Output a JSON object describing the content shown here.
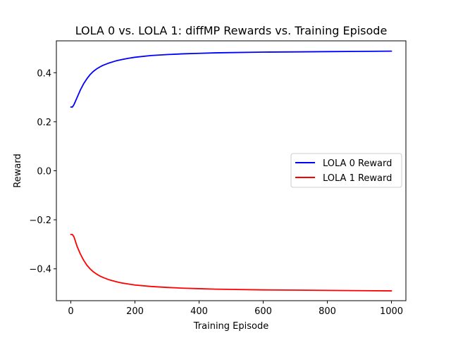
{
  "chart_data": {
    "type": "line",
    "title": "LOLA 0 vs. LOLA 1: diffMP Rewards vs. Training Episode",
    "xlabel": "Training Episode",
    "ylabel": "Reward",
    "xlim": [
      -45,
      1045
    ],
    "ylim": [
      -0.53,
      0.53
    ],
    "xticks": [
      0,
      200,
      400,
      600,
      800,
      1000
    ],
    "xtick_labels": [
      "0",
      "200",
      "400",
      "600",
      "800",
      "1000"
    ],
    "yticks": [
      -0.4,
      -0.2,
      0.0,
      0.2,
      0.4
    ],
    "ytick_labels": [
      "−0.4",
      "−0.2",
      "0.0",
      "0.2",
      "0.4"
    ],
    "grid": false,
    "legend_position": "center-right",
    "x": [
      0,
      5,
      10,
      15,
      20,
      30,
      40,
      50,
      60,
      70,
      80,
      90,
      100,
      120,
      140,
      160,
      180,
      200,
      250,
      300,
      350,
      400,
      450,
      500,
      600,
      700,
      800,
      900,
      1000
    ],
    "series": [
      {
        "name": "LOLA 0 Reward",
        "color": "#0000ff",
        "values": [
          0.26,
          0.26,
          0.27,
          0.285,
          0.3,
          0.33,
          0.355,
          0.375,
          0.392,
          0.405,
          0.415,
          0.423,
          0.43,
          0.44,
          0.448,
          0.454,
          0.459,
          0.463,
          0.47,
          0.474,
          0.477,
          0.479,
          0.481,
          0.482,
          0.484,
          0.485,
          0.486,
          0.487,
          0.488
        ]
      },
      {
        "name": "LOLA 1 Reward",
        "color": "#ff0000",
        "values": [
          -0.26,
          -0.26,
          -0.27,
          -0.29,
          -0.31,
          -0.34,
          -0.365,
          -0.385,
          -0.4,
          -0.412,
          -0.421,
          -0.429,
          -0.435,
          -0.445,
          -0.452,
          -0.458,
          -0.462,
          -0.466,
          -0.472,
          -0.476,
          -0.479,
          -0.481,
          -0.483,
          -0.484,
          -0.486,
          -0.487,
          -0.488,
          -0.489,
          -0.49
        ]
      }
    ]
  }
}
